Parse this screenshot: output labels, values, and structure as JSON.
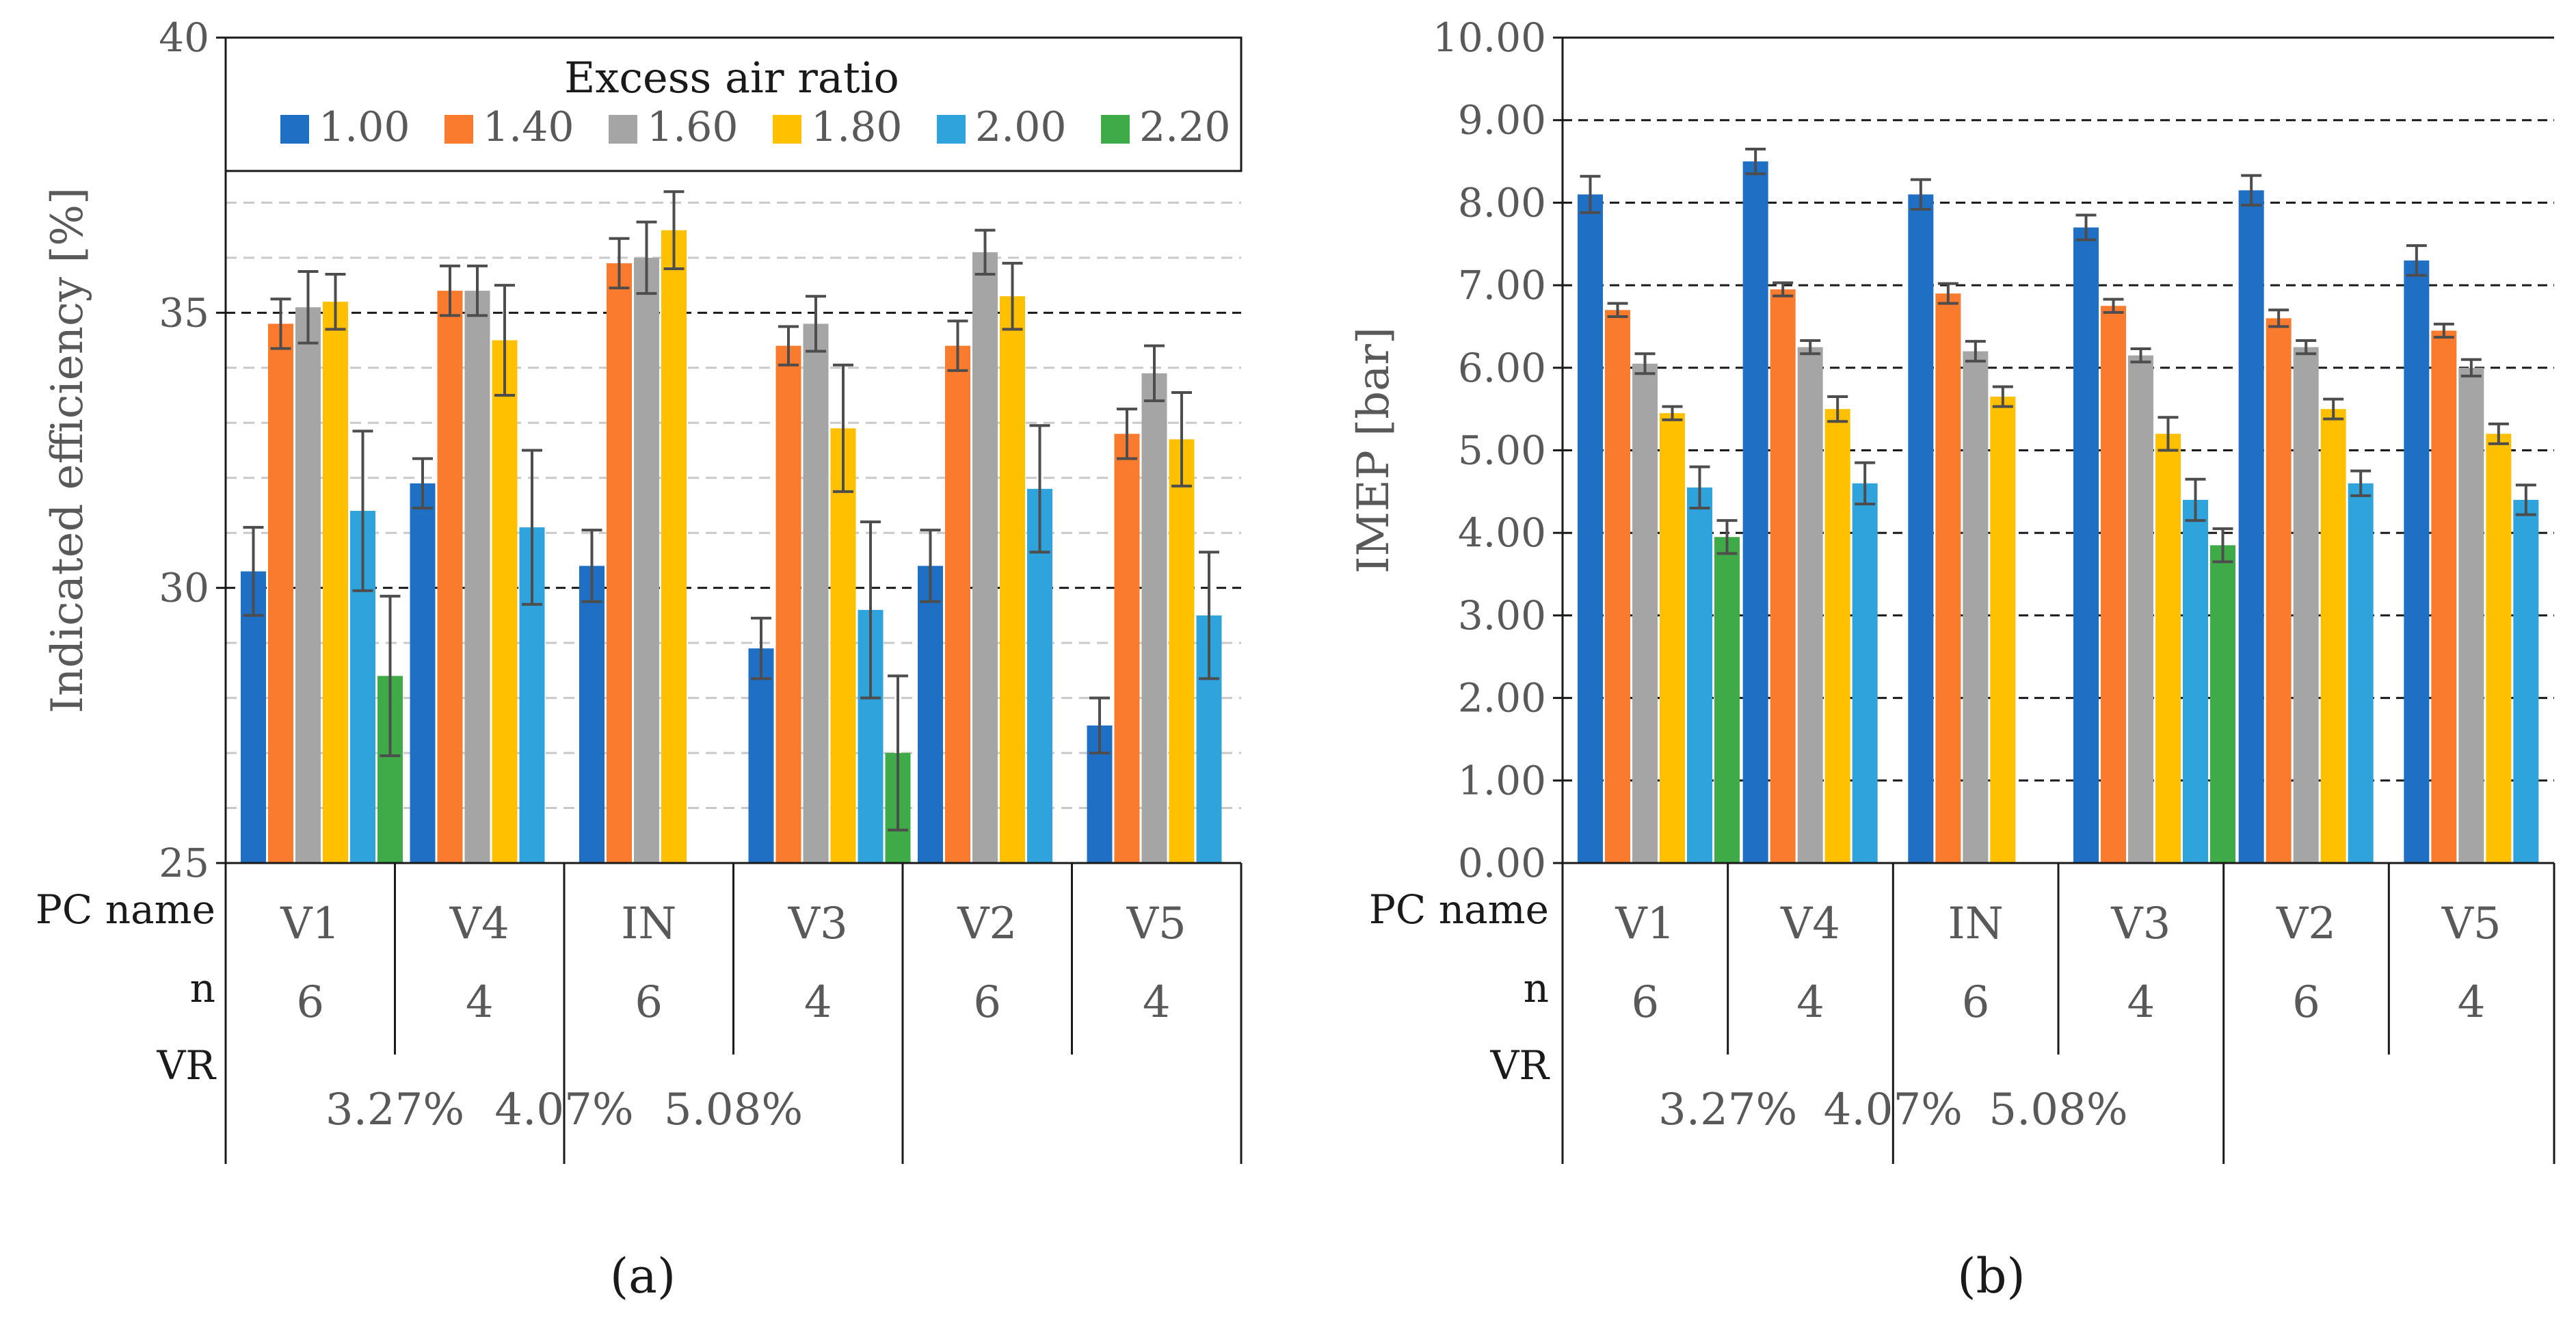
{
  "colors": {
    "r1_00": "#1f6fc5",
    "r1_40": "#fb7b2e",
    "r1_60": "#a5a5a5",
    "r1_80": "#ffc000",
    "r2_00": "#2ea3dc",
    "r2_20": "#3fab48",
    "error_bar": "#4d4d4d",
    "axis_text": "#595959"
  },
  "legend": {
    "title": "Excess air ratio",
    "entries": [
      "1.00",
      "1.40",
      "1.60",
      "1.80",
      "2.00",
      "2.20"
    ]
  },
  "table": {
    "row_labels": {
      "pc_name": "PC name",
      "n": "n",
      "vr": "VR"
    },
    "pc_names": [
      "V1",
      "V4",
      "IN",
      "V3",
      "V2",
      "V5"
    ],
    "n_values": [
      "6",
      "4",
      "6",
      "4",
      "6",
      "4"
    ],
    "vr_values": [
      "3.27%",
      "4.07%",
      "5.08%"
    ]
  },
  "panel_labels": {
    "a": "(a)",
    "b": "(b)"
  },
  "chart_data": [
    {
      "type": "bar",
      "panel": "a",
      "ylabel": "Indicated efficiency [%]",
      "ylim": [
        25,
        40
      ],
      "yticks": [
        "25",
        "30",
        "35",
        "40"
      ],
      "categories": [
        "V1",
        "V4",
        "IN",
        "V3",
        "V2",
        "V5"
      ],
      "series": [
        {
          "name": "1.00",
          "values": [
            30.3,
            31.9,
            30.4,
            28.9,
            30.4,
            27.5
          ],
          "errors": [
            0.8,
            0.45,
            0.65,
            0.55,
            0.65,
            0.5
          ]
        },
        {
          "name": "1.40",
          "values": [
            34.8,
            35.4,
            35.9,
            34.4,
            34.4,
            32.8
          ],
          "errors": [
            0.45,
            0.45,
            0.45,
            0.35,
            0.45,
            0.45
          ]
        },
        {
          "name": "1.60",
          "values": [
            35.1,
            35.4,
            36.0,
            34.8,
            36.1,
            33.9
          ],
          "errors": [
            0.65,
            0.45,
            0.65,
            0.5,
            0.4,
            0.5
          ]
        },
        {
          "name": "1.80",
          "values": [
            35.2,
            34.5,
            36.5,
            32.9,
            35.3,
            32.7
          ],
          "errors": [
            0.5,
            1.0,
            0.7,
            1.15,
            0.6,
            0.85
          ]
        },
        {
          "name": "2.00",
          "values": [
            31.4,
            31.1,
            null,
            29.6,
            31.8,
            29.5
          ],
          "errors": [
            1.45,
            1.4,
            null,
            1.6,
            1.15,
            1.15
          ]
        },
        {
          "name": "2.20",
          "values": [
            28.4,
            null,
            null,
            27.0,
            null,
            null
          ],
          "errors": [
            1.45,
            null,
            null,
            1.4,
            null,
            null
          ]
        }
      ]
    },
    {
      "type": "bar",
      "panel": "b",
      "ylabel": "IMEP [bar]",
      "ylim": [
        0,
        10
      ],
      "yticks": [
        "0.00",
        "1.00",
        "2.00",
        "3.00",
        "4.00",
        "5.00",
        "6.00",
        "7.00",
        "8.00",
        "9.00",
        "10.00"
      ],
      "categories": [
        "V1",
        "V4",
        "IN",
        "V3",
        "V2",
        "V5"
      ],
      "series": [
        {
          "name": "1.00",
          "values": [
            8.1,
            8.5,
            8.1,
            7.7,
            8.15,
            7.3
          ],
          "errors": [
            0.22,
            0.15,
            0.18,
            0.15,
            0.18,
            0.18
          ]
        },
        {
          "name": "1.40",
          "values": [
            6.7,
            6.95,
            6.9,
            6.75,
            6.6,
            6.45
          ],
          "errors": [
            0.08,
            0.08,
            0.12,
            0.08,
            0.1,
            0.08
          ]
        },
        {
          "name": "1.60",
          "values": [
            6.05,
            6.25,
            6.2,
            6.15,
            6.25,
            6.0
          ],
          "errors": [
            0.12,
            0.08,
            0.12,
            0.08,
            0.08,
            0.1
          ]
        },
        {
          "name": "1.80",
          "values": [
            5.45,
            5.5,
            5.65,
            5.2,
            5.5,
            5.2
          ],
          "errors": [
            0.08,
            0.15,
            0.12,
            0.2,
            0.12,
            0.12
          ]
        },
        {
          "name": "2.00",
          "values": [
            4.55,
            4.6,
            null,
            4.4,
            4.6,
            4.4
          ],
          "errors": [
            0.25,
            0.25,
            null,
            0.25,
            0.15,
            0.18
          ]
        },
        {
          "name": "2.20",
          "values": [
            3.95,
            null,
            null,
            3.85,
            null,
            null
          ],
          "errors": [
            0.2,
            null,
            null,
            0.2,
            null,
            null
          ]
        }
      ]
    }
  ]
}
